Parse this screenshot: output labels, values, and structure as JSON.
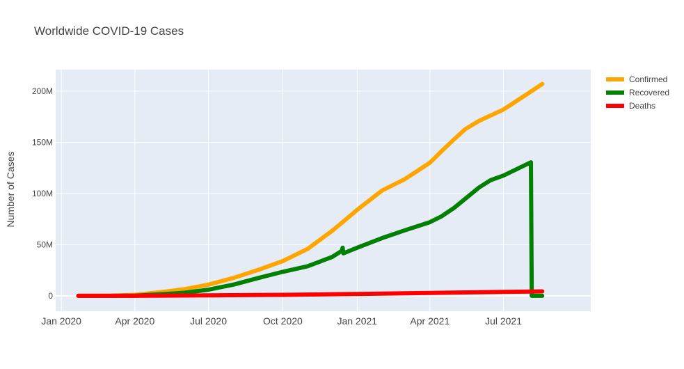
{
  "colors": {
    "plot_bg": "#e5ecf6",
    "grid": "#ffffff",
    "axis_text": "#444444",
    "title_text": "#444444",
    "confirmed": "#ffa500",
    "recovered": "#008000",
    "deaths": "#ff0000"
  },
  "chart_data": {
    "type": "line",
    "title": "Worldwide COVID-19 Cases",
    "xlabel": "",
    "ylabel": "Number of Cases",
    "xlim": [
      "2019-12-25",
      "2021-10-17"
    ],
    "ylim": [
      -15000000,
      221000000
    ],
    "grid": true,
    "legend_position": "top-right",
    "x_ticks": [
      {
        "value": "2020-01-01",
        "label": "Jan 2020"
      },
      {
        "value": "2020-04-01",
        "label": "Apr 2020"
      },
      {
        "value": "2020-07-01",
        "label": "Jul 2020"
      },
      {
        "value": "2020-10-01",
        "label": "Oct 2020"
      },
      {
        "value": "2021-01-01",
        "label": "Jan 2021"
      },
      {
        "value": "2021-04-01",
        "label": "Apr 2021"
      },
      {
        "value": "2021-07-01",
        "label": "Jul 2021"
      }
    ],
    "y_ticks": [
      {
        "value": 0,
        "label": "0"
      },
      {
        "value": 50000000,
        "label": "50M"
      },
      {
        "value": 100000000,
        "label": "100M"
      },
      {
        "value": 150000000,
        "label": "150M"
      },
      {
        "value": 200000000,
        "label": "200M"
      }
    ],
    "series": [
      {
        "name": "Confirmed",
        "color": "#ffa500",
        "points": [
          [
            "2020-01-22",
            0
          ],
          [
            "2020-03-01",
            100000
          ],
          [
            "2020-04-01",
            1000000
          ],
          [
            "2020-05-01",
            3500000
          ],
          [
            "2020-06-01",
            6500000
          ],
          [
            "2020-07-01",
            11000000
          ],
          [
            "2020-08-01",
            17500000
          ],
          [
            "2020-09-01",
            25500000
          ],
          [
            "2020-10-01",
            34000000
          ],
          [
            "2020-11-01",
            46000000
          ],
          [
            "2020-12-01",
            63500000
          ],
          [
            "2020-12-14",
            72000000
          ],
          [
            "2021-01-01",
            84000000
          ],
          [
            "2021-02-01",
            103000000
          ],
          [
            "2021-03-01",
            114000000
          ],
          [
            "2021-04-01",
            130000000
          ],
          [
            "2021-04-15",
            141000000
          ],
          [
            "2021-05-01",
            153000000
          ],
          [
            "2021-05-15",
            163000000
          ],
          [
            "2021-06-01",
            171000000
          ],
          [
            "2021-07-01",
            182000000
          ],
          [
            "2021-08-01",
            198000000
          ],
          [
            "2021-08-18",
            207000000
          ]
        ]
      },
      {
        "name": "Recovered",
        "color": "#008000",
        "points": [
          [
            "2020-01-22",
            0
          ],
          [
            "2020-03-01",
            50000
          ],
          [
            "2020-04-01",
            250000
          ],
          [
            "2020-05-01",
            1500000
          ],
          [
            "2020-06-01",
            3000000
          ],
          [
            "2020-07-01",
            6000000
          ],
          [
            "2020-08-01",
            11000000
          ],
          [
            "2020-09-01",
            17500000
          ],
          [
            "2020-10-01",
            23500000
          ],
          [
            "2020-11-01",
            29000000
          ],
          [
            "2020-12-01",
            38000000
          ],
          [
            "2020-12-13",
            44000000
          ],
          [
            "2020-12-14",
            47000000
          ],
          [
            "2020-12-15",
            41500000
          ],
          [
            "2021-01-01",
            47000000
          ],
          [
            "2021-02-01",
            56500000
          ],
          [
            "2021-03-01",
            64000000
          ],
          [
            "2021-04-01",
            72000000
          ],
          [
            "2021-04-15",
            77500000
          ],
          [
            "2021-05-01",
            86000000
          ],
          [
            "2021-06-01",
            106000000
          ],
          [
            "2021-06-15",
            113000000
          ],
          [
            "2021-07-01",
            117500000
          ],
          [
            "2021-08-04",
            130500000
          ],
          [
            "2021-08-05",
            0
          ],
          [
            "2021-08-18",
            0
          ]
        ]
      },
      {
        "name": "Deaths",
        "color": "#ff0000",
        "points": [
          [
            "2020-01-22",
            0
          ],
          [
            "2020-04-01",
            50000
          ],
          [
            "2020-07-01",
            500000
          ],
          [
            "2020-10-01",
            1000000
          ],
          [
            "2021-01-01",
            1900000
          ],
          [
            "2021-04-01",
            2800000
          ],
          [
            "2021-07-01",
            3900000
          ],
          [
            "2021-08-18",
            4400000
          ]
        ]
      }
    ]
  }
}
